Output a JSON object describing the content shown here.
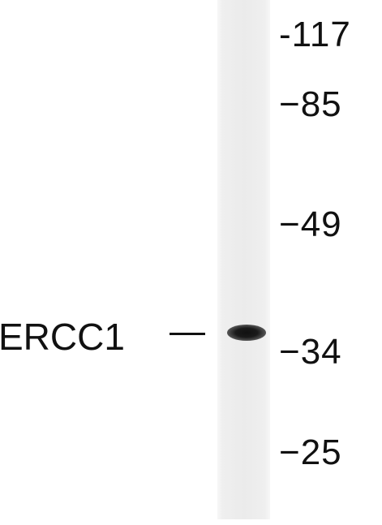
{
  "blot": {
    "protein": {
      "label": "ERCC1"
    },
    "markers": [
      {
        "text": "-117",
        "kda": 117
      },
      {
        "text": "−85",
        "kda": 85
      },
      {
        "text": "−49",
        "kda": 49
      },
      {
        "text": "−34",
        "kda": 34
      },
      {
        "text": "−25",
        "kda": 25
      }
    ],
    "band_kda": 34
  },
  "colors": {
    "background": "#ffffff",
    "lane": "#ebebeb",
    "band": "#111111",
    "text": "#111111"
  }
}
